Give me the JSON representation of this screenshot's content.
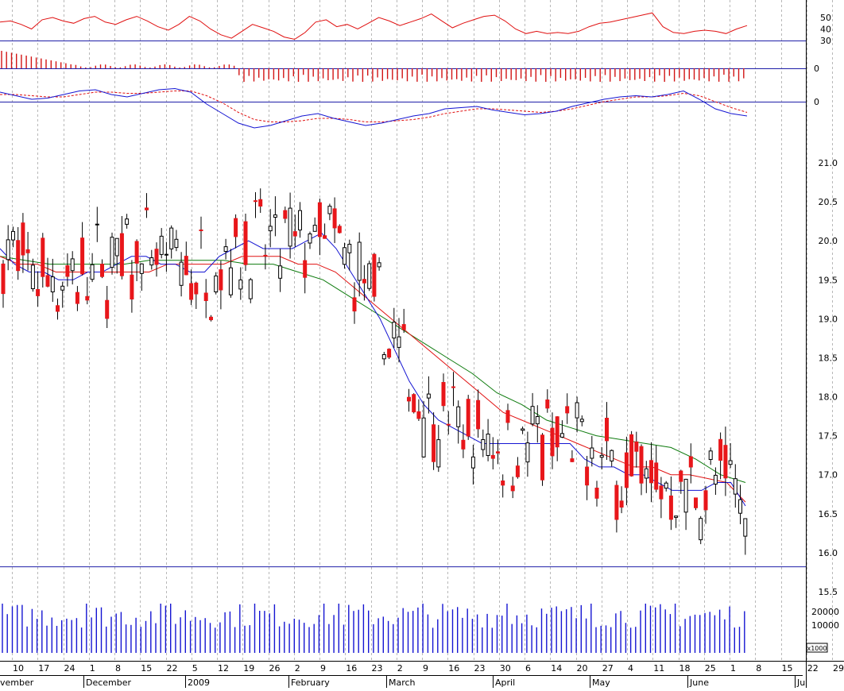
{
  "chart_data": {
    "type": "candlestick",
    "title": "",
    "xlabel": "",
    "ylabel": "",
    "grid": true,
    "price_ticks": [
      "21.0",
      "20.5",
      "20.0",
      "19.5",
      "19.0",
      "18.5",
      "18.0",
      "17.5",
      "17.0",
      "16.5",
      "16.0",
      "15.5"
    ],
    "price_range": [
      15.5,
      21.0
    ],
    "rsi_ticks": [
      "50",
      "40",
      "30"
    ],
    "rsi_range": [
      30,
      50
    ],
    "histogram_ticks": [
      "0"
    ],
    "macd_ticks": [
      "0"
    ],
    "volume_ticks": [
      "20000",
      "10000"
    ],
    "volume_unit_label": "x1000",
    "support_level": 15.82,
    "day_ticks": [
      "10",
      "17",
      "24",
      "1",
      "8",
      "15",
      "22",
      "5",
      "12",
      "19",
      "26",
      "2",
      "9",
      "16",
      "23",
      "2",
      "9",
      "16",
      "23",
      "30",
      "6",
      "14",
      "20",
      "27",
      "4",
      "11",
      "18",
      "25",
      "1",
      "8",
      "15",
      "22",
      "29"
    ],
    "month_labels": [
      "vember",
      "December",
      "2009",
      "February",
      "March",
      "April",
      "May",
      "June",
      "Ju"
    ],
    "series": [
      {
        "name": "",
        "type": "candlestick",
        "color": "#e8161a"
      },
      {
        "name": "",
        "type": "moving-average",
        "color": "#1414d2"
      },
      {
        "name": "",
        "type": "moving-average",
        "color": "#e01010"
      },
      {
        "name": "",
        "type": "moving-average",
        "color": "#0c7a0c"
      },
      {
        "name": "",
        "type": "rsi",
        "color": "#e01010"
      },
      {
        "name": "",
        "type": "macd-histogram",
        "color": "#d21414"
      },
      {
        "name": "",
        "type": "macd",
        "color": "#1414d2"
      },
      {
        "name": "",
        "type": "macd-signal",
        "color": "#e01010"
      },
      {
        "name": "",
        "type": "volume",
        "color": "#1414d2"
      }
    ],
    "ma_fast": [
      19.9,
      19.7,
      19.6,
      19.6,
      19.5,
      19.5,
      19.6,
      19.6,
      19.7,
      19.8,
      19.8,
      19.7,
      19.7,
      19.6,
      19.6,
      19.8,
      19.9,
      20.0,
      19.9,
      19.9,
      19.9,
      20.0,
      20.1,
      19.9,
      19.6,
      19.3,
      19.0,
      18.6,
      18.2,
      17.9,
      17.7,
      17.6,
      17.5,
      17.4,
      17.4,
      17.4,
      17.4,
      17.4,
      17.4,
      17.4,
      17.2,
      17.1,
      17.1,
      17.0,
      17.0,
      16.9,
      16.8,
      16.8,
      16.8,
      16.9,
      16.9,
      16.6
    ],
    "ma_mid": [
      19.8,
      19.7,
      19.7,
      19.6,
      19.6,
      19.6,
      19.6,
      19.6,
      19.6,
      19.7,
      19.7,
      19.7,
      19.7,
      19.8,
      19.8,
      19.8,
      19.7,
      19.7,
      19.6,
      19.4,
      19.2,
      19.0,
      18.8,
      18.6,
      18.4,
      18.2,
      18.0,
      17.8,
      17.7,
      17.6,
      17.5,
      17.4,
      17.3,
      17.2,
      17.1,
      17.1,
      17.0,
      17.0,
      16.95,
      16.9,
      16.65
    ],
    "ma_slow": [
      19.8,
      19.75,
      19.7,
      19.7,
      19.7,
      19.7,
      19.75,
      19.75,
      19.75,
      19.75,
      19.7,
      19.7,
      19.6,
      19.5,
      19.3,
      19.1,
      18.9,
      18.7,
      18.5,
      18.3,
      18.05,
      17.9,
      17.7,
      17.6,
      17.5,
      17.45,
      17.4,
      17.35,
      17.2,
      17.0,
      16.9
    ],
    "rsi": [
      46,
      47,
      44,
      40,
      48,
      50,
      47,
      45,
      49,
      51,
      46,
      44,
      48,
      51,
      47,
      42,
      39,
      44,
      51,
      47,
      40,
      35,
      32,
      38,
      44,
      41,
      38,
      33,
      31,
      37,
      46,
      48,
      42,
      44,
      40,
      45,
      50,
      47,
      43,
      46,
      49,
      53,
      47,
      41,
      45,
      48,
      51,
      52,
      47,
      40,
      36,
      38,
      36,
      37,
      36,
      38,
      42,
      45,
      46,
      48,
      50,
      52,
      54,
      42,
      37,
      36,
      38,
      39,
      38,
      36,
      40,
      43
    ],
    "macd": [
      0.08,
      0.05,
      0.02,
      0.03,
      0.06,
      0.09,
      0.1,
      0.06,
      0.04,
      0.07,
      0.1,
      0.11,
      0.08,
      -0.02,
      -0.1,
      -0.18,
      -0.22,
      -0.2,
      -0.16,
      -0.12,
      -0.1,
      -0.14,
      -0.17,
      -0.2,
      -0.18,
      -0.15,
      -0.12,
      -0.1,
      -0.06,
      -0.05,
      -0.04,
      -0.07,
      -0.09,
      -0.11,
      -0.1,
      -0.08,
      -0.04,
      -0.01,
      0.02,
      0.04,
      0.05,
      0.04,
      0.06,
      0.09,
      0.02,
      -0.06,
      -0.1,
      -0.12
    ],
    "macd_signal": [
      0.06,
      0.06,
      0.05,
      0.04,
      0.04,
      0.06,
      0.08,
      0.08,
      0.07,
      0.07,
      0.08,
      0.09,
      0.09,
      0.05,
      -0.01,
      -0.09,
      -0.15,
      -0.17,
      -0.17,
      -0.16,
      -0.14,
      -0.14,
      -0.15,
      -0.17,
      -0.17,
      -0.16,
      -0.15,
      -0.13,
      -0.1,
      -0.08,
      -0.06,
      -0.06,
      -0.07,
      -0.08,
      -0.09,
      -0.08,
      -0.06,
      -0.03,
      0.0,
      0.02,
      0.04,
      0.04,
      0.05,
      0.07,
      0.05,
      0.0,
      -0.05,
      -0.09
    ]
  }
}
